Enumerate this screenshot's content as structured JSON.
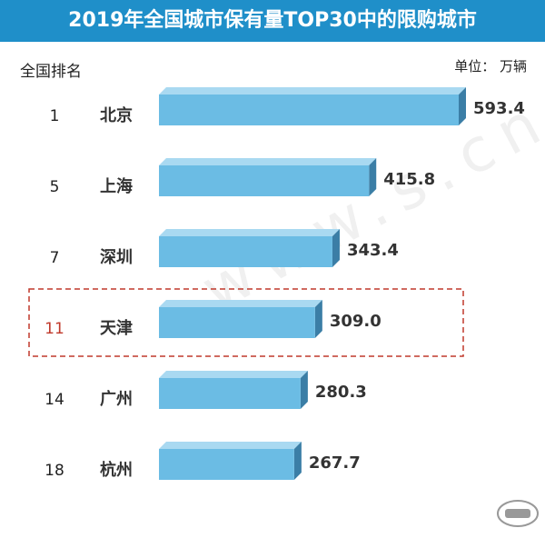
{
  "title": "2019年全国城市保有量TOP30中的限购城市",
  "header_left": "全国排名",
  "header_right": "单位： 万辆",
  "watermark": "www.s.cn",
  "chart_data": {
    "type": "bar",
    "orientation": "horizontal",
    "title": "2019年全国城市保有量TOP30中的限购城市",
    "unit": "万辆",
    "categories": [
      "北京",
      "上海",
      "深圳",
      "天津",
      "广州",
      "杭州"
    ],
    "ranks": [
      "1",
      "5",
      "7",
      "11",
      "14",
      "18"
    ],
    "values": [
      593.4,
      415.8,
      343.4,
      309.0,
      280.3,
      267.7
    ],
    "value_labels": [
      "593.4",
      "415.8",
      "343.4",
      "309.0",
      "280.3",
      "267.7"
    ],
    "highlight": "天津",
    "colors": {
      "bar_front": "#6bbce4",
      "bar_top": "#a9d9f1",
      "bar_side": "#3b7ea6",
      "title_bg": "#1f8fc9",
      "highlight_rank": "#c0392b",
      "highlight_box": "#c0392b"
    }
  }
}
